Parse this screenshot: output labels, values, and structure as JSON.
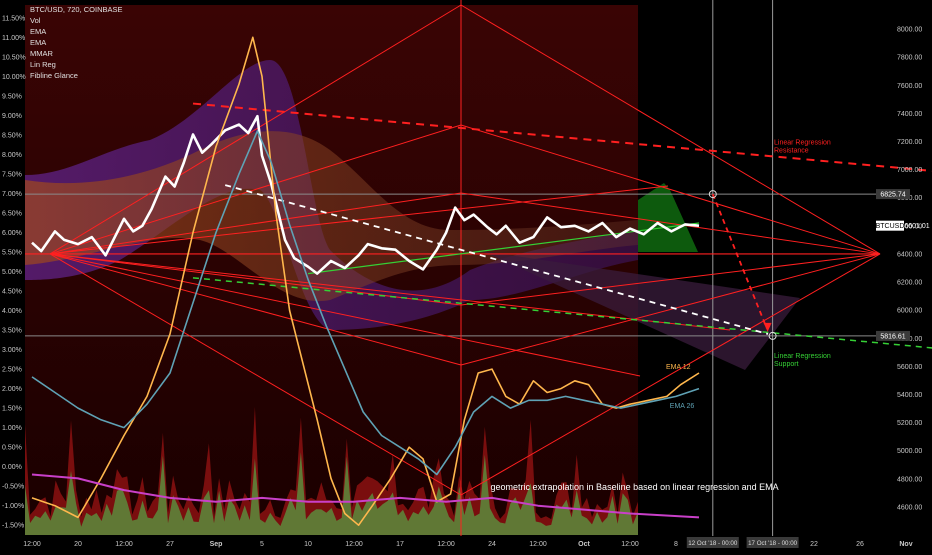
{
  "chart_data": {
    "type": "line",
    "symbol": "BTC/USD, 720, COINBASE",
    "legend_items": [
      "Vol",
      "EMA",
      "EMA",
      "MMAR",
      "Lin Reg",
      "Fibline Glance"
    ],
    "left_axis": {
      "min": -1.75,
      "max": 11.75,
      "labels": [
        "11.50%",
        "11.00%",
        "10.50%",
        "10.00%",
        "9.50%",
        "9.00%",
        "8.50%",
        "8.00%",
        "7.50%",
        "7.00%",
        "6.50%",
        "6.00%",
        "5.50%",
        "5.00%",
        "4.50%",
        "4.00%",
        "3.50%",
        "3.00%",
        "2.50%",
        "2.00%",
        "1.50%",
        "1.00%",
        "0.50%",
        "0.00%",
        "-0.50%",
        "-1.00%",
        "-1.50%"
      ]
    },
    "right_axis": {
      "min": 4400,
      "max": 8150,
      "ticks": [
        8000,
        7800,
        7600,
        7400,
        7200,
        7000,
        6800,
        6600,
        6400,
        6200,
        6000,
        5800,
        5600,
        5400,
        5200,
        5000,
        4800,
        4600
      ],
      "badges": [
        {
          "label": "6825.74",
          "value": 6825.74,
          "color": "#3a3a3a"
        },
        {
          "label": "BTCUSD",
          "value": 6601.01,
          "color": "#ffffff"
        },
        {
          "label": "6601.01",
          "value": 6601.01,
          "color": "#ffffff"
        },
        {
          "label": "5816.61",
          "value": 5816.61,
          "color": "#3a3a3a"
        }
      ]
    },
    "x_axis": {
      "labels": [
        {
          "text": "12:00",
          "x": 0
        },
        {
          "text": "20",
          "x": 1
        },
        {
          "text": "12:00",
          "x": 2
        },
        {
          "text": "27",
          "x": 3
        },
        {
          "text": "Sep",
          "x": 4
        },
        {
          "text": "5",
          "x": 5
        },
        {
          "text": "10",
          "x": 6
        },
        {
          "text": "12:00",
          "x": 7
        },
        {
          "text": "17",
          "x": 8
        },
        {
          "text": "12:00",
          "x": 9
        },
        {
          "text": "24",
          "x": 10
        },
        {
          "text": "12:00",
          "x": 11
        },
        {
          "text": "Oct",
          "x": 12
        },
        {
          "text": "12:00",
          "x": 13
        },
        {
          "text": "8",
          "x": 14
        },
        {
          "text": "22",
          "x": 17
        },
        {
          "text": "26",
          "x": 18
        },
        {
          "text": "Nov",
          "x": 19
        }
      ],
      "time_badges": [
        {
          "text": "12 Oct '18 - 00:00",
          "x": 14.8
        },
        {
          "text": "17 Oct '18 - 00:00",
          "x": 16.1
        }
      ]
    },
    "series": [
      {
        "name": "",
        "color": "#ffffff",
        "axis": "price",
        "points": [
          [
            0,
            6480
          ],
          [
            0.2,
            6420
          ],
          [
            0.5,
            6560
          ],
          [
            0.7,
            6500
          ],
          [
            1.0,
            6470
          ],
          [
            1.3,
            6520
          ],
          [
            1.6,
            6390
          ],
          [
            2.0,
            6650
          ],
          [
            2.2,
            6560
          ],
          [
            2.4,
            6600
          ],
          [
            2.6,
            6720
          ],
          [
            2.9,
            6950
          ],
          [
            3.1,
            6880
          ],
          [
            3.3,
            7050
          ],
          [
            3.5,
            7250
          ],
          [
            3.7,
            7120
          ],
          [
            3.9,
            7180
          ],
          [
            4.2,
            7280
          ],
          [
            4.5,
            7320
          ],
          [
            4.7,
            7260
          ],
          [
            4.9,
            7380
          ],
          [
            5.0,
            7100
          ],
          [
            5.2,
            6900
          ],
          [
            5.5,
            6500
          ],
          [
            5.7,
            6370
          ],
          [
            6.0,
            6310
          ],
          [
            6.2,
            6260
          ],
          [
            6.5,
            6350
          ],
          [
            6.8,
            6300
          ],
          [
            7.1,
            6390
          ],
          [
            7.3,
            6470
          ],
          [
            7.6,
            6440
          ],
          [
            7.9,
            6430
          ],
          [
            8.2,
            6350
          ],
          [
            8.5,
            6290
          ],
          [
            8.8,
            6430
          ],
          [
            9.0,
            6550
          ],
          [
            9.2,
            6730
          ],
          [
            9.4,
            6640
          ],
          [
            9.6,
            6680
          ],
          [
            9.9,
            6590
          ],
          [
            10.1,
            6540
          ],
          [
            10.3,
            6600
          ],
          [
            10.6,
            6480
          ],
          [
            10.9,
            6520
          ],
          [
            11.2,
            6660
          ],
          [
            11.5,
            6590
          ],
          [
            11.8,
            6600
          ],
          [
            12.1,
            6560
          ],
          [
            12.4,
            6620
          ],
          [
            12.7,
            6520
          ],
          [
            13.0,
            6580
          ],
          [
            13.3,
            6540
          ],
          [
            13.6,
            6620
          ],
          [
            13.9,
            6560
          ],
          [
            14.2,
            6610
          ],
          [
            14.5,
            6601
          ]
        ]
      },
      {
        "name": "EMA 12",
        "color": "#ffb74d",
        "axis": "percent",
        "points": [
          [
            0,
            -0.8
          ],
          [
            0.5,
            -1.0
          ],
          [
            1.0,
            -1.3
          ],
          [
            1.5,
            -0.3
          ],
          [
            2.0,
            0.8
          ],
          [
            2.5,
            1.8
          ],
          [
            3.0,
            3.4
          ],
          [
            3.5,
            6.0
          ],
          [
            4.0,
            8.2
          ],
          [
            4.5,
            9.8
          ],
          [
            4.8,
            11.0
          ],
          [
            5.0,
            10.0
          ],
          [
            5.3,
            6.5
          ],
          [
            5.6,
            4.0
          ],
          [
            5.9,
            2.6
          ],
          [
            6.2,
            1.2
          ],
          [
            6.5,
            -0.3
          ],
          [
            6.8,
            -1.2
          ],
          [
            7.1,
            -1.5
          ],
          [
            7.4,
            -1.0
          ],
          [
            7.8,
            -0.3
          ],
          [
            8.2,
            0.5
          ],
          [
            8.5,
            0.2
          ],
          [
            8.8,
            -0.9
          ],
          [
            9.1,
            -0.7
          ],
          [
            9.4,
            1.2
          ],
          [
            9.7,
            2.4
          ],
          [
            10.0,
            2.5
          ],
          [
            10.3,
            1.8
          ],
          [
            10.6,
            1.6
          ],
          [
            10.9,
            2.2
          ],
          [
            11.2,
            1.9
          ],
          [
            11.5,
            2.0
          ],
          [
            11.8,
            2.2
          ],
          [
            12.1,
            2.1
          ],
          [
            12.4,
            1.6
          ],
          [
            12.7,
            1.5
          ],
          [
            13.0,
            1.6
          ],
          [
            13.4,
            1.7
          ],
          [
            13.8,
            1.8
          ],
          [
            14.1,
            2.1
          ],
          [
            14.5,
            2.4
          ]
        ]
      },
      {
        "name": "EMA 26",
        "color": "#5fa2b5",
        "axis": "percent",
        "points": [
          [
            0,
            2.3
          ],
          [
            0.5,
            1.9
          ],
          [
            1.0,
            1.5
          ],
          [
            1.5,
            1.2
          ],
          [
            2.0,
            1.0
          ],
          [
            2.5,
            1.6
          ],
          [
            3.0,
            2.4
          ],
          [
            3.5,
            4.2
          ],
          [
            4.0,
            6.0
          ],
          [
            4.5,
            7.5
          ],
          [
            4.9,
            8.6
          ],
          [
            5.2,
            7.8
          ],
          [
            5.6,
            6.2
          ],
          [
            6.0,
            4.8
          ],
          [
            6.4,
            3.6
          ],
          [
            6.8,
            2.5
          ],
          [
            7.2,
            1.4
          ],
          [
            7.6,
            0.8
          ],
          [
            8.0,
            0.5
          ],
          [
            8.4,
            0.2
          ],
          [
            8.8,
            -0.2
          ],
          [
            9.2,
            0.5
          ],
          [
            9.6,
            1.4
          ],
          [
            10.0,
            1.8
          ],
          [
            10.4,
            1.5
          ],
          [
            10.8,
            1.7
          ],
          [
            11.2,
            1.7
          ],
          [
            11.6,
            1.8
          ],
          [
            12.0,
            1.7
          ],
          [
            12.4,
            1.6
          ],
          [
            12.8,
            1.5
          ],
          [
            13.2,
            1.6
          ],
          [
            13.6,
            1.7
          ],
          [
            14.0,
            1.8
          ],
          [
            14.5,
            2.0
          ]
        ]
      },
      {
        "name": "",
        "color": "#c940c9",
        "axis": "percent",
        "points": [
          [
            0,
            -0.2
          ],
          [
            1.0,
            -0.3
          ],
          [
            2.0,
            -0.6
          ],
          [
            3.0,
            -0.8
          ],
          [
            4.0,
            -0.9
          ],
          [
            5.0,
            -0.8
          ],
          [
            6.0,
            -0.9
          ],
          [
            7.0,
            -0.9
          ],
          [
            8.0,
            -0.8
          ],
          [
            9.0,
            -0.9
          ],
          [
            10.0,
            -0.8
          ],
          [
            11.0,
            -1.0
          ],
          [
            12.0,
            -1.1
          ],
          [
            13.0,
            -1.2
          ],
          [
            14.5,
            -1.3
          ]
        ]
      }
    ],
    "regression": {
      "resistance": {
        "label": [
          "Linear Regression",
          "Resistance"
        ],
        "color": "#ff2020",
        "from": [
          3.5,
          7470
        ],
        "to": [
          19.6,
          6990
        ]
      },
      "support": {
        "label": [
          "Linear Regression",
          "Support"
        ],
        "color": "#35d035",
        "from": [
          3.5,
          6230
        ],
        "to": [
          19.6,
          5730
        ]
      },
      "midline": {
        "color": "#35d035",
        "from": [
          6.0,
          6260
        ],
        "to": [
          14.5,
          6620
        ]
      }
    },
    "dashed_projection": {
      "color": "#ffffff",
      "from": [
        4.2,
        6890
      ],
      "to": [
        16.0,
        5830
      ]
    },
    "projection_arrow": {
      "color": "#ff2020",
      "from": [
        14.8,
        6825.74
      ],
      "to": [
        16.1,
        5816.61
      ]
    },
    "annotations": [
      {
        "text": "EMA 12",
        "color": "#ffb74d",
        "x": 14.0,
        "y_pct": 2.5
      },
      {
        "text": "EMA 26",
        "color": "#5fa2b5",
        "x": 14.3,
        "y_pct": 1.5
      },
      {
        "text": "geometric extrapolation in Baseline based on linear regression and EMA",
        "color": "#ffffff",
        "x": 13.1,
        "y_pct": -0.6
      }
    ]
  }
}
